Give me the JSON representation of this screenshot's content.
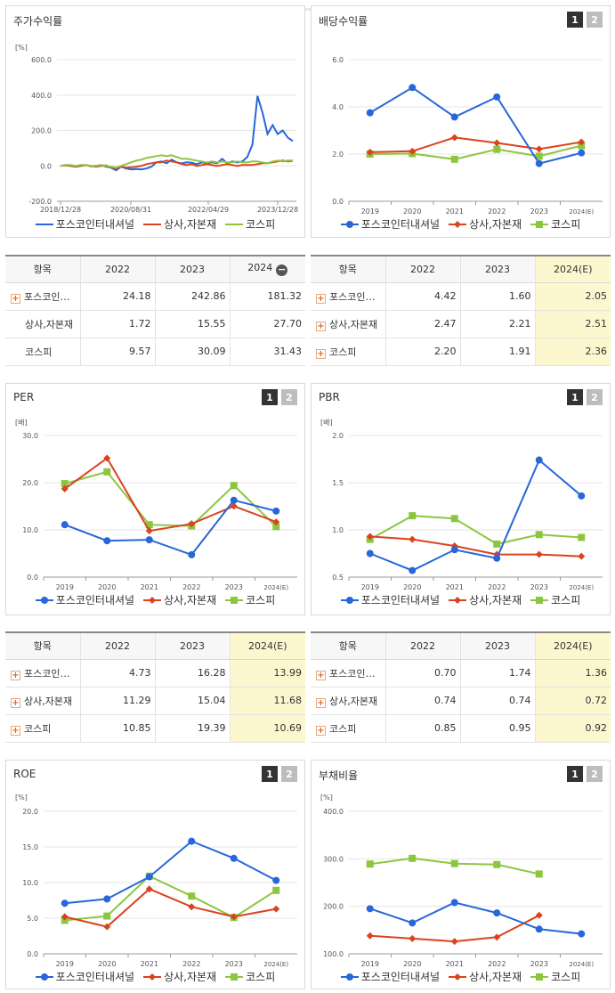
{
  "colors": {
    "company": "#2767d9",
    "sector": "#d9431e",
    "kospi": "#8cc63f"
  },
  "legend": {
    "company": "포스코인터내셔널",
    "sector": "상사,자본재",
    "kospi": "코스피"
  },
  "panels": {
    "stock_return": {
      "title": "주가수익률",
      "unit": "[%]"
    },
    "dividend": {
      "title": "배당수익률",
      "btn1": "1",
      "btn2": "2"
    },
    "per": {
      "title": "PER",
      "unit": "[배]",
      "btn1": "1",
      "btn2": "2"
    },
    "pbr": {
      "title": "PBR",
      "unit": "[배]",
      "btn1": "1",
      "btn2": "2"
    },
    "roe": {
      "title": "ROE",
      "unit": "[%]",
      "btn1": "1",
      "btn2": "2"
    },
    "debt": {
      "title": "부채비율",
      "unit": "[%]",
      "btn1": "1",
      "btn2": "2"
    }
  },
  "tables": {
    "stock_return": {
      "headers": [
        "항목",
        "2022",
        "2023",
        "2024"
      ],
      "rows": [
        {
          "name": "포스코인…",
          "icon": true,
          "values": [
            "24.18",
            "242.86",
            "181.32"
          ]
        },
        {
          "name": "상사,자본재",
          "icon": false,
          "values": [
            "1.72",
            "15.55",
            "27.70"
          ]
        },
        {
          "name": "코스피",
          "icon": false,
          "values": [
            "9.57",
            "30.09",
            "31.43"
          ]
        }
      ]
    },
    "dividend": {
      "headers": [
        "항목",
        "2022",
        "2023",
        "2024(E)"
      ],
      "rows": [
        {
          "name": "포스코인…",
          "icon": true,
          "values": [
            "4.42",
            "1.60",
            "2.05"
          ]
        },
        {
          "name": "상사,자본재",
          "icon": true,
          "values": [
            "2.47",
            "2.21",
            "2.51"
          ]
        },
        {
          "name": "코스피",
          "icon": true,
          "values": [
            "2.20",
            "1.91",
            "2.36"
          ]
        }
      ]
    },
    "per": {
      "headers": [
        "항목",
        "2022",
        "2023",
        "2024(E)"
      ],
      "rows": [
        {
          "name": "포스코인…",
          "icon": true,
          "values": [
            "4.73",
            "16.28",
            "13.99"
          ]
        },
        {
          "name": "상사,자본재",
          "icon": true,
          "values": [
            "11.29",
            "15.04",
            "11.68"
          ]
        },
        {
          "name": "코스피",
          "icon": true,
          "values": [
            "10.85",
            "19.39",
            "10.69"
          ]
        }
      ]
    },
    "pbr": {
      "headers": [
        "항목",
        "2022",
        "2023",
        "2024(E)"
      ],
      "rows": [
        {
          "name": "포스코인…",
          "icon": true,
          "values": [
            "0.70",
            "1.74",
            "1.36"
          ]
        },
        {
          "name": "상사,자본재",
          "icon": true,
          "values": [
            "0.74",
            "0.74",
            "0.72"
          ]
        },
        {
          "name": "코스피",
          "icon": true,
          "values": [
            "0.85",
            "0.95",
            "0.92"
          ]
        }
      ]
    }
  },
  "chart_data": [
    {
      "id": "stock_return",
      "type": "line",
      "xticks": [
        "2018/12/28",
        "2020/08/31",
        "2022/04/29",
        "2023/12/28"
      ],
      "yticks": [
        "600.0",
        "400.0",
        "200.0",
        "0.0",
        "-200.0"
      ],
      "ylim": [
        -200,
        600
      ],
      "series": [
        {
          "key": "company",
          "values": [
            0,
            5,
            0,
            -5,
            0,
            5,
            -3,
            0,
            5,
            -5,
            -10,
            -25,
            -5,
            -15,
            -20,
            -18,
            -20,
            -15,
            -5,
            20,
            25,
            15,
            35,
            20,
            15,
            20,
            18,
            10,
            20,
            15,
            20,
            15,
            40,
            15,
            25,
            20,
            25,
            50,
            120,
            395,
            300,
            180,
            230,
            180,
            200,
            160,
            140
          ]
        },
        {
          "key": "sector",
          "values": [
            0,
            3,
            0,
            -3,
            0,
            5,
            0,
            -5,
            0,
            3,
            -10,
            -15,
            -5,
            -10,
            -8,
            -5,
            0,
            10,
            15,
            20,
            20,
            30,
            25,
            20,
            10,
            5,
            10,
            0,
            5,
            10,
            5,
            0,
            5,
            10,
            5,
            0,
            5,
            5,
            5,
            10,
            15,
            15,
            20,
            25,
            30,
            25,
            28
          ]
        },
        {
          "key": "kospi",
          "values": [
            0,
            5,
            5,
            0,
            5,
            5,
            0,
            0,
            5,
            0,
            -5,
            -10,
            0,
            10,
            20,
            30,
            35,
            45,
            50,
            55,
            60,
            55,
            60,
            50,
            40,
            40,
            35,
            30,
            25,
            20,
            25,
            20,
            25,
            20,
            20,
            25,
            20,
            20,
            25,
            25,
            20,
            15,
            25,
            30,
            25,
            30,
            30
          ]
        }
      ]
    },
    {
      "id": "dividend",
      "type": "line",
      "categories": [
        "2019",
        "2020",
        "2021",
        "2022",
        "2023",
        "2024(E)"
      ],
      "yticks": [
        "6.0",
        "4.0",
        "2.0",
        "0.0"
      ],
      "ylim": [
        0,
        6
      ],
      "series": [
        {
          "key": "company",
          "values": [
            3.75,
            4.82,
            3.57,
            4.42,
            1.6,
            2.05
          ]
        },
        {
          "key": "sector",
          "values": [
            2.08,
            2.12,
            2.7,
            2.47,
            2.21,
            2.51
          ]
        },
        {
          "key": "kospi",
          "values": [
            2.0,
            2.02,
            1.78,
            2.2,
            1.91,
            2.36
          ]
        }
      ]
    },
    {
      "id": "per",
      "type": "line",
      "categories": [
        "2019",
        "2020",
        "2021",
        "2022",
        "2023",
        "2024(E)"
      ],
      "yticks": [
        "30.0",
        "20.0",
        "10.0",
        "0.0"
      ],
      "ylim": [
        0,
        30
      ],
      "series": [
        {
          "key": "company",
          "values": [
            11.1,
            7.7,
            7.9,
            4.73,
            16.28,
            13.99
          ]
        },
        {
          "key": "sector",
          "values": [
            18.7,
            25.2,
            9.8,
            11.29,
            15.04,
            11.68
          ]
        },
        {
          "key": "kospi",
          "values": [
            19.8,
            22.3,
            11.1,
            10.85,
            19.39,
            10.69
          ]
        }
      ]
    },
    {
      "id": "pbr",
      "type": "line",
      "categories": [
        "2019",
        "2020",
        "2021",
        "2022",
        "2023",
        "2024(E)"
      ],
      "yticks": [
        "2.0",
        "1.5",
        "1.0",
        "0.5"
      ],
      "ylim": [
        0.5,
        2.0
      ],
      "series": [
        {
          "key": "company",
          "values": [
            0.75,
            0.57,
            0.79,
            0.7,
            1.74,
            1.36
          ]
        },
        {
          "key": "sector",
          "values": [
            0.93,
            0.9,
            0.83,
            0.74,
            0.74,
            0.72
          ]
        },
        {
          "key": "kospi",
          "values": [
            0.9,
            1.15,
            1.12,
            0.85,
            0.95,
            0.92
          ]
        }
      ]
    },
    {
      "id": "roe",
      "type": "line",
      "categories": [
        "2019",
        "2020",
        "2021",
        "2022",
        "2023",
        "2024(E)"
      ],
      "yticks": [
        "20.0",
        "15.0",
        "10.0",
        "5.0",
        "0.0"
      ],
      "ylim": [
        0,
        20
      ],
      "series": [
        {
          "key": "company",
          "values": [
            7.1,
            7.7,
            10.8,
            15.8,
            13.4,
            10.3
          ]
        },
        {
          "key": "sector",
          "values": [
            5.2,
            3.8,
            9.1,
            6.6,
            5.2,
            6.3
          ]
        },
        {
          "key": "kospi",
          "values": [
            4.7,
            5.3,
            10.9,
            8.1,
            5.1,
            8.9
          ]
        }
      ]
    },
    {
      "id": "debt",
      "type": "line",
      "categories": [
        "2019",
        "2020",
        "2021",
        "2022",
        "2023",
        "2024(E)"
      ],
      "yticks": [
        "400.0",
        "300.0",
        "200.0",
        "100.0"
      ],
      "ylim": [
        100,
        400
      ],
      "series": [
        {
          "key": "company",
          "values": [
            195,
            165,
            208,
            186,
            152,
            142
          ]
        },
        {
          "key": "sector",
          "values": [
            138,
            132,
            126,
            135,
            181,
            null
          ]
        },
        {
          "key": "kospi",
          "values": [
            289,
            301,
            290,
            288,
            268,
            null
          ]
        }
      ]
    }
  ]
}
